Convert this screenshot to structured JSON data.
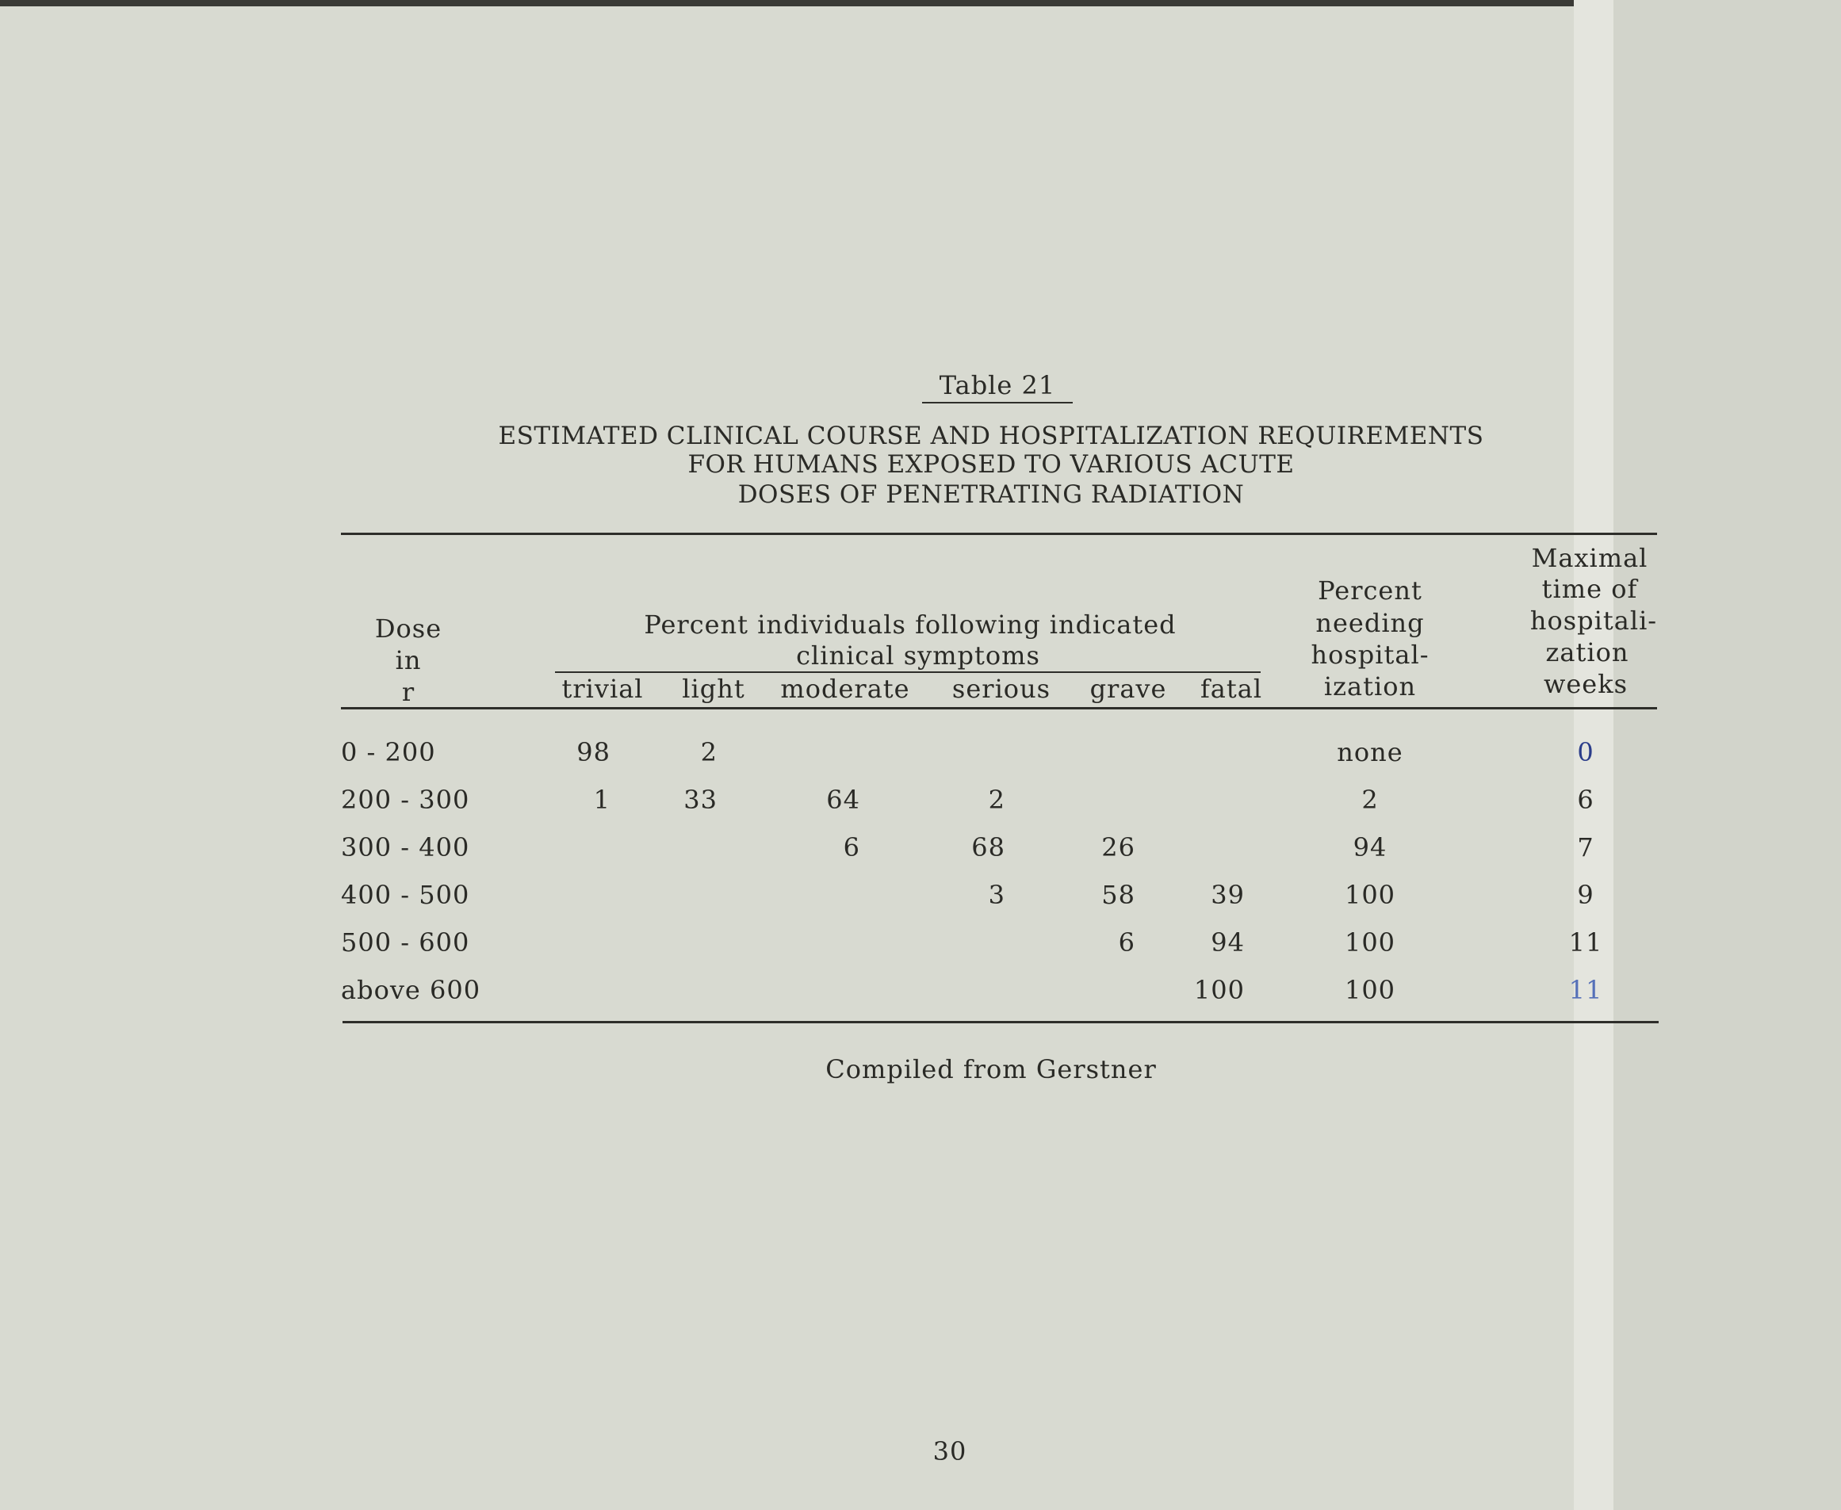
{
  "table": {
    "number": "Table 21",
    "title_lines": [
      "ESTIMATED CLINICAL COURSE AND HOSPITALIZATION REQUIREMENTS",
      "FOR HUMANS EXPOSED TO VARIOUS ACUTE",
      "DOSES OF PENETRATING RADIATION"
    ],
    "headers": {
      "dose": [
        "Dose",
        "in",
        "r"
      ],
      "group": [
        "Percent individuals following indicated",
        "clinical symptoms"
      ],
      "symptoms": [
        "trivial",
        "light",
        "moderate",
        "serious",
        "grave",
        "fatal"
      ],
      "needing": [
        "Percent",
        "needing",
        "hospital-",
        "ization"
      ],
      "weeks": [
        "Maximal",
        "time of",
        "hospitali-",
        "zation",
        "weeks"
      ]
    },
    "rows": [
      {
        "dose": "0 - 200",
        "trivial": "98",
        "light": "2",
        "moderate": "",
        "serious": "",
        "grave": "",
        "fatal": "",
        "needing": "none",
        "weeks": "0"
      },
      {
        "dose": "200 - 300",
        "trivial": "1",
        "light": "33",
        "moderate": "64",
        "serious": "2",
        "grave": "",
        "fatal": "",
        "needing": "2",
        "weeks": "6"
      },
      {
        "dose": "300 - 400",
        "trivial": "",
        "light": "",
        "moderate": "6",
        "serious": "68",
        "grave": "26",
        "fatal": "",
        "needing": "94",
        "weeks": "7"
      },
      {
        "dose": "400 - 500",
        "trivial": "",
        "light": "",
        "moderate": "",
        "serious": "3",
        "grave": "58",
        "fatal": "39",
        "needing": "100",
        "weeks": "9"
      },
      {
        "dose": "500 - 600",
        "trivial": "",
        "light": "",
        "moderate": "",
        "serious": "",
        "grave": "6",
        "fatal": "94",
        "needing": "100",
        "weeks": "11"
      },
      {
        "dose": "above 600",
        "trivial": "",
        "light": "",
        "moderate": "",
        "serious": "",
        "grave": "",
        "fatal": "100",
        "needing": "100",
        "weeks": "11"
      }
    ],
    "source": "Compiled from Gerstner"
  },
  "page_number": "30",
  "handwritten_ink_color": "#2b3d8a"
}
